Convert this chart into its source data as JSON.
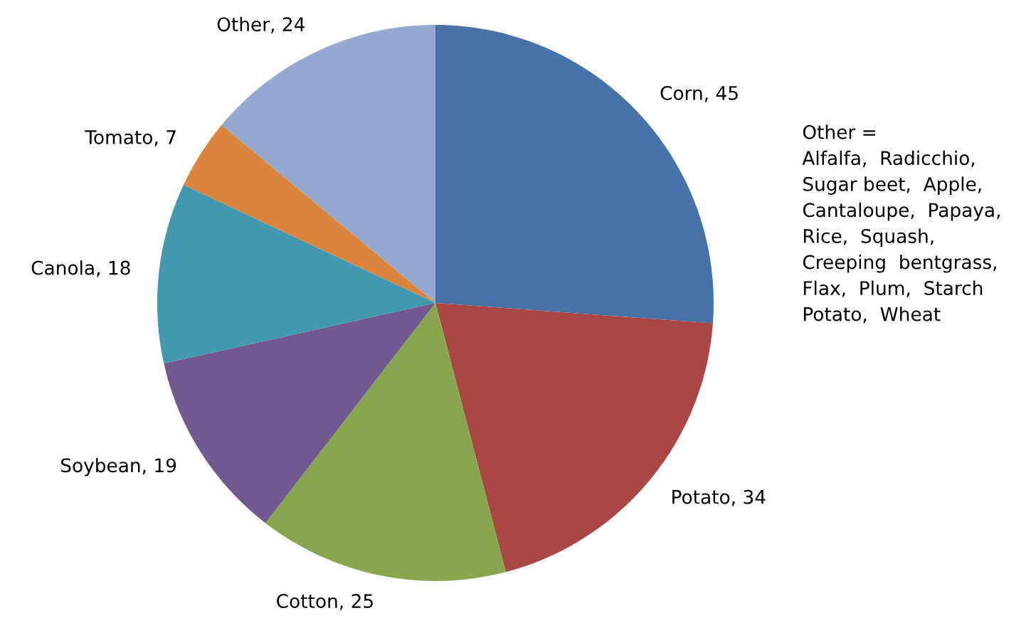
{
  "chart_data": {
    "type": "pie",
    "categories": [
      "Corn",
      "Potato",
      "Cotton",
      "Soybean",
      "Canola",
      "Tomato",
      "Other"
    ],
    "values": [
      45,
      34,
      25,
      19,
      18,
      7,
      24
    ],
    "colors": [
      "#4672a6",
      "#a94744",
      "#89a54e",
      "#71588f",
      "#4198af",
      "#db843d",
      "#93a9cf"
    ],
    "value_labels": [
      ", 45",
      ", 34",
      ", 25",
      ", 19",
      ", 18",
      ", 7",
      ", 24"
    ],
    "annotations": [
      "Other =\nAlfalfa,  Radicchio,\nSugar beet,  Apple,\nCantaloupe,  Papaya,\nRice,  Squash,\nCreeping  bentgrass,\nFlax,  Plum,  Starch\nPotato,  Wheat"
    ],
    "legend": false
  }
}
